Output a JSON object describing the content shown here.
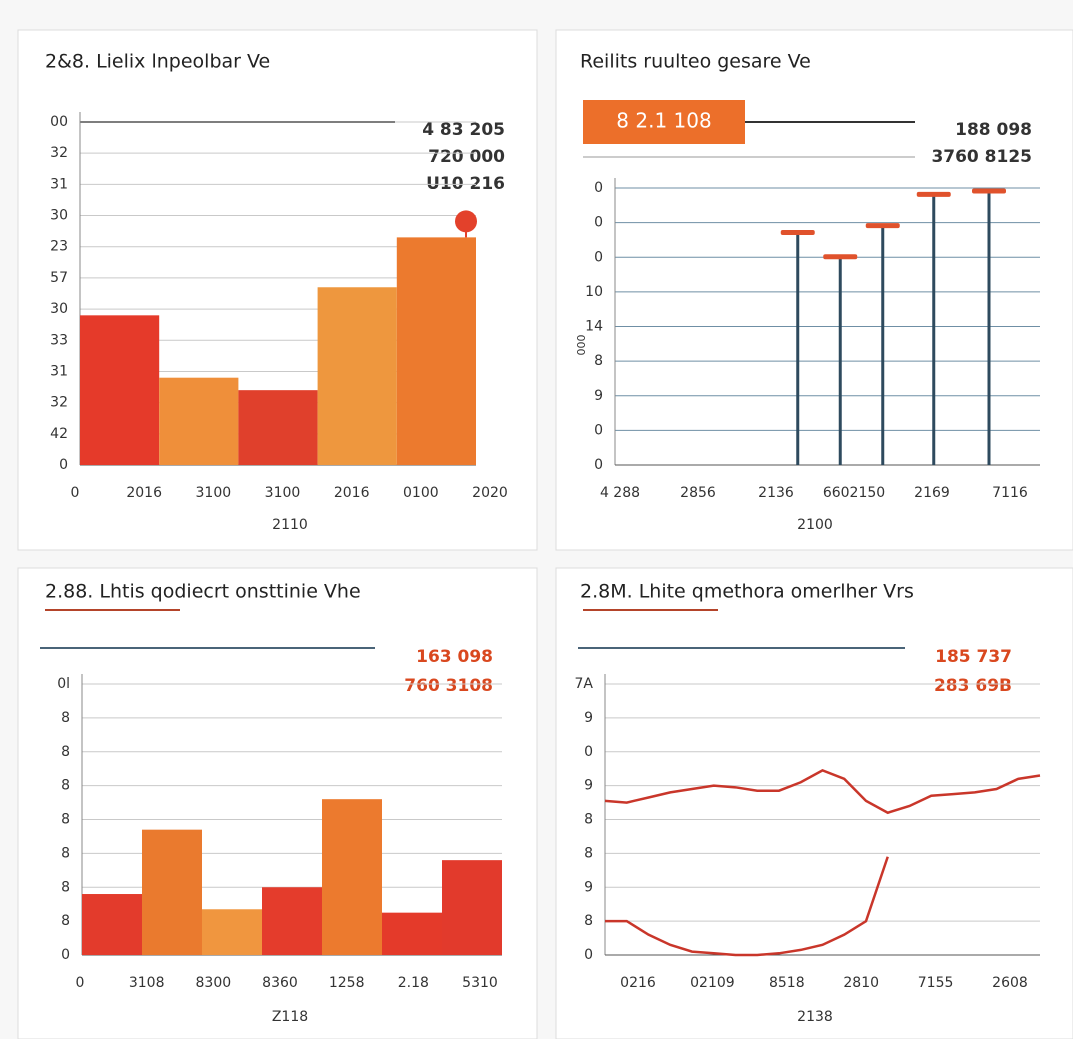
{
  "chart_data": [
    {
      "type": "bar",
      "title": "2&8. Lielix lnpeolbar Ve",
      "categories": [
        null,
        null,
        null,
        null,
        null
      ],
      "values": [
        4.8,
        2.8,
        2.4,
        5.7,
        7.3
      ],
      "colors": [
        "#e53a2a",
        "#ef8f3a",
        "#e0402c",
        "#ee973e",
        "#ec7a2e"
      ],
      "ylim": [
        0,
        11
      ],
      "yticks": [
        {
          "value": 0,
          "label": "0"
        },
        {
          "value": 1,
          "label": "42"
        },
        {
          "value": 2,
          "label": "32"
        },
        {
          "value": 3,
          "label": "31"
        },
        {
          "value": 4,
          "label": "33"
        },
        {
          "value": 5,
          "label": "30"
        },
        {
          "value": 6,
          "label": "57"
        },
        {
          "value": 7,
          "label": "23"
        },
        {
          "value": 8,
          "label": "30"
        },
        {
          "value": 9,
          "label": "31"
        },
        {
          "value": 10,
          "label": "32"
        },
        {
          "value": 11,
          "label": "00"
        }
      ],
      "x_labels": [
        "0",
        "2016",
        "3100",
        "3100",
        "2016",
        "0100",
        "2020"
      ],
      "x_label": "2110",
      "annotations": [
        "4 83 205",
        "720 000",
        "U10 216"
      ],
      "annotation_color": "#333333",
      "grid": true,
      "grid_color": "#c9c9c9",
      "marker_color": "#e3412b"
    },
    {
      "type": "stem",
      "title": "Reilits ruulteo gesare Ve",
      "badge": "8 2.1 108",
      "badge_color": "#ec6f2a",
      "categories": [
        null,
        null,
        null,
        null,
        null
      ],
      "values": [
        6.7,
        6.0,
        6.9,
        7.8,
        7.9
      ],
      "stem_color": "#2e4a5e",
      "cap_color": "#e0522c",
      "xpos": [
        0.43,
        0.53,
        0.63,
        0.75,
        0.88
      ],
      "ylim": [
        0,
        8
      ],
      "yticks": [
        {
          "value": 0,
          "label": "0"
        },
        {
          "value": 1,
          "label": "0"
        },
        {
          "value": 2,
          "label": "9"
        },
        {
          "value": 3,
          "label": "8"
        },
        {
          "value": 4,
          "label": "14"
        },
        {
          "value": 5,
          "label": "10"
        },
        {
          "value": 6,
          "label": "0"
        },
        {
          "value": 7,
          "label": "0"
        },
        {
          "value": 8,
          "label": "0"
        }
      ],
      "y_label": "000",
      "x_labels": [
        "4 288",
        "2856",
        "2136",
        "6602150",
        "2169",
        "7116"
      ],
      "x_label": "2100",
      "annotations": [
        "188 098",
        "3760 8125"
      ],
      "annotation_color": "#333333",
      "grid": true,
      "grid_color": "#6f8fa5"
    },
    {
      "type": "bar",
      "title": "2.88. Lhtis qodiecrt onsttinie Vhe",
      "categories": [
        null,
        null,
        null,
        null,
        null,
        null,
        null
      ],
      "values": [
        1.8,
        3.7,
        1.35,
        2.0,
        4.6,
        1.25,
        2.8
      ],
      "colors": [
        "#e33b2c",
        "#ea7a2e",
        "#f0963f",
        "#e43c2c",
        "#ec7a2e",
        "#e43a2a",
        "#e23a2c"
      ],
      "ylim": [
        0,
        8
      ],
      "yticks": [
        {
          "value": 0,
          "label": "0"
        },
        {
          "value": 1,
          "label": "8"
        },
        {
          "value": 2,
          "label": "8"
        },
        {
          "value": 3,
          "label": "8"
        },
        {
          "value": 4,
          "label": "8"
        },
        {
          "value": 5,
          "label": "8"
        },
        {
          "value": 6,
          "label": "8"
        },
        {
          "value": 7,
          "label": "8"
        },
        {
          "value": 8,
          "label": "0l"
        }
      ],
      "x_labels": [
        "0",
        "3108",
        "8300",
        "8360",
        "1258",
        "2.18",
        "5310"
      ],
      "x_label": "Z118",
      "annotations": [
        "163 098",
        "760 3108"
      ],
      "annotation_color": "#d9481f",
      "grid": true,
      "grid_color": "#c9c9c9"
    },
    {
      "type": "line",
      "title": "2.8M. Lhite qmethora omerlher Vrs",
      "x": [
        0,
        1,
        2,
        3,
        4,
        5,
        6,
        7,
        8,
        9,
        10,
        11,
        12,
        13,
        14,
        15,
        16,
        17,
        18,
        19,
        20
      ],
      "xlim": [
        0,
        20
      ],
      "series": [
        {
          "name": null,
          "color": "#c9362a",
          "values": [
            4.55,
            4.5,
            4.65,
            4.8,
            4.9,
            5.0,
            4.95,
            4.85,
            4.85,
            5.1,
            5.45,
            5.2,
            4.55,
            4.2,
            4.4,
            4.7,
            4.75,
            4.8,
            4.9,
            5.2,
            5.3
          ]
        },
        {
          "name": null,
          "color": "#c9362a",
          "values": [
            1.0,
            1.0,
            0.6,
            0.3,
            0.1,
            0.05,
            0,
            0,
            0.05,
            0.15,
            0.3,
            0.6,
            1.0,
            2.9,
            null,
            null,
            null,
            null,
            null,
            null,
            null
          ]
        }
      ],
      "ylim": [
        0,
        8
      ],
      "yticks": [
        {
          "value": 0,
          "label": "0"
        },
        {
          "value": 1,
          "label": "8"
        },
        {
          "value": 2,
          "label": "9"
        },
        {
          "value": 3,
          "label": "8"
        },
        {
          "value": 4,
          "label": "8"
        },
        {
          "value": 5,
          "label": "9"
        },
        {
          "value": 6,
          "label": "0"
        },
        {
          "value": 7,
          "label": "9"
        },
        {
          "value": 8,
          "label": "7A"
        }
      ],
      "x_labels": [
        "0216",
        "02109",
        "8518",
        "2810",
        "7155",
        "2608"
      ],
      "x_label": "2138",
      "annotations": [
        "185 737",
        "283 69B"
      ],
      "annotation_color": "#d9481f",
      "grid": true,
      "grid_color": "#c9c9c9"
    }
  ]
}
